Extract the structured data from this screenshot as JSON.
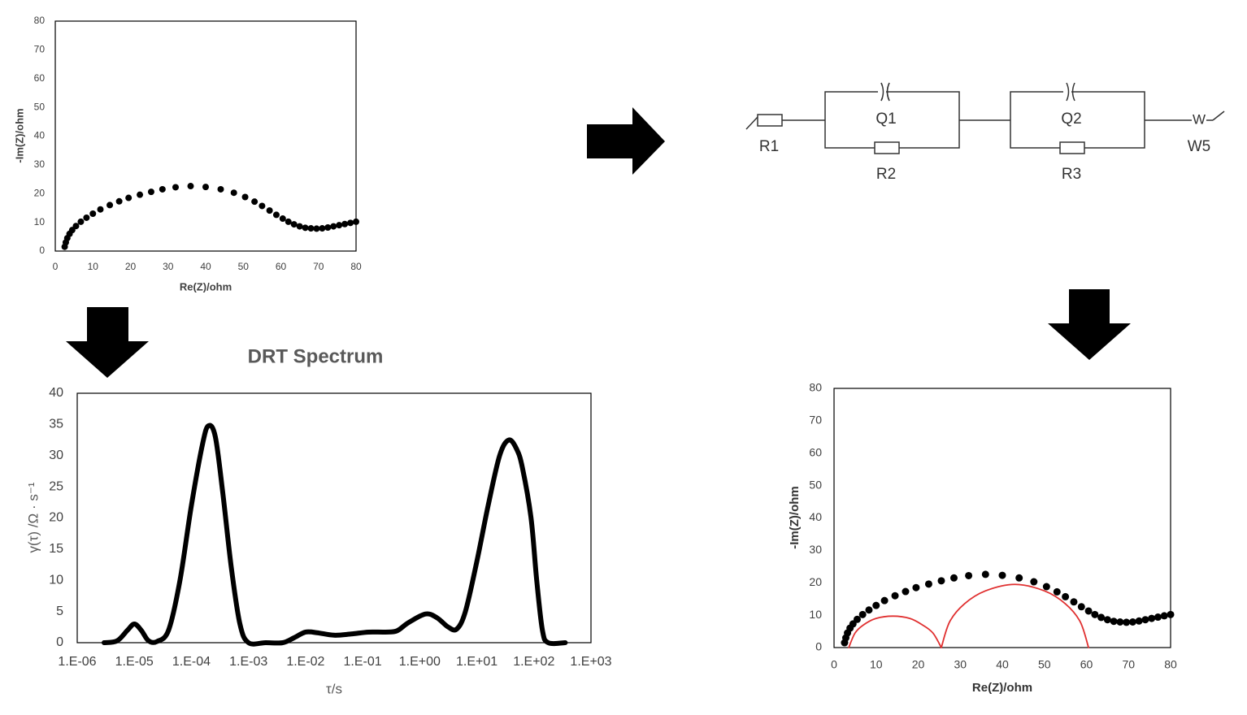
{
  "chart_data": [
    {
      "type": "scatter",
      "xlabel": "Re(Z)/ohm",
      "ylabel": "-Im(Z)/ohm",
      "xlim": [
        0,
        80
      ],
      "ylim": [
        0,
        80
      ],
      "xticks": [
        0,
        10,
        20,
        30,
        40,
        50,
        60,
        70,
        80
      ],
      "yticks": [
        0,
        10,
        20,
        30,
        40,
        50,
        60,
        70,
        80
      ],
      "grid": false,
      "series": [
        {
          "style": "markers",
          "color": "#000000",
          "x": [
            2.5,
            2.8,
            3.2,
            3.8,
            4.5,
            5.5,
            6.8,
            8.3,
            10,
            12,
            14.5,
            17,
            19.5,
            22.5,
            25.5,
            28.5,
            32,
            36,
            40,
            44,
            47.5,
            50.5,
            53,
            55,
            57,
            58.8,
            60.5,
            62,
            63.5,
            65,
            66.5,
            68,
            69.5,
            71,
            72.5,
            74,
            75.5,
            77,
            78.5,
            80
          ],
          "values": [
            1.5,
            3,
            4.5,
            6,
            7.3,
            8.7,
            10.2,
            11.6,
            13,
            14.5,
            16,
            17.3,
            18.5,
            19.6,
            20.6,
            21.5,
            22.2,
            22.6,
            22.3,
            21.5,
            20.3,
            18.8,
            17.2,
            15.7,
            14.1,
            12.6,
            11.3,
            10.2,
            9.3,
            8.6,
            8.1,
            7.9,
            7.8,
            7.9,
            8.2,
            8.6,
            9,
            9.4,
            9.8,
            10.2
          ]
        }
      ]
    },
    {
      "type": "line",
      "title": "DRT Spectrum",
      "xlabel": "τ/s",
      "ylabel": "γ(τ) /Ω · s⁻¹",
      "xscale": "log",
      "xlim": [
        1e-06,
        1000
      ],
      "ylim": [
        0,
        40
      ],
      "xticks": [
        {
          "value": 1e-06,
          "label": "1.E-06"
        },
        {
          "value": 1e-05,
          "label": "1.E-05"
        },
        {
          "value": 0.0001,
          "label": "1.E-04"
        },
        {
          "value": 0.001,
          "label": "1.E-03"
        },
        {
          "value": 0.01,
          "label": "1.E-02"
        },
        {
          "value": 0.1,
          "label": "1.E-01"
        },
        {
          "value": 1,
          "label": "1.E+00"
        },
        {
          "value": 10,
          "label": "1.E+01"
        },
        {
          "value": 100,
          "label": "1.E+02"
        },
        {
          "value": 1000,
          "label": "1.E+03"
        }
      ],
      "yticks": [
        0,
        5,
        10,
        15,
        20,
        25,
        30,
        35,
        40
      ],
      "grid": false,
      "series": [
        {
          "style": "line",
          "color": "#000000",
          "x": [
            2.95e-06,
            5e-06,
            7.6e-06,
            1e-05,
            1.32e-05,
            1.78e-05,
            2.51e-05,
            3.98e-05,
            6.31e-05,
            0.0001,
            0.000158,
            0.0002,
            0.000263,
            0.000355,
            0.000501,
            0.000708,
            0.001,
            0.002,
            0.00398,
            0.00631,
            0.01,
            0.0158,
            0.0316,
            0.0631,
            0.126,
            0.251,
            0.398,
            0.631,
            1.26,
            2.0,
            3.16,
            4.47,
            6.31,
            10,
            15.8,
            25.1,
            36.3,
            50.1,
            63.1,
            89.1,
            112,
            141,
            178,
            355
          ],
          "values": [
            0,
            0.3,
            2,
            3,
            2,
            0.3,
            0.2,
            2,
            10,
            22,
            32,
            34.8,
            33,
            24,
            12,
            3,
            0,
            0,
            0,
            0.8,
            1.7,
            1.6,
            1.2,
            1.4,
            1.7,
            1.7,
            1.9,
            3.2,
            4.6,
            4,
            2.5,
            2.2,
            5,
            13,
            22,
            30,
            32.5,
            31,
            28,
            20,
            10,
            2,
            0,
            0
          ]
        }
      ]
    },
    {
      "type": "scatter",
      "xlabel": "Re(Z)/ohm",
      "ylabel": "-Im(Z)/ohm",
      "xlim": [
        0,
        80
      ],
      "ylim": [
        0,
        80
      ],
      "xticks": [
        0,
        10,
        20,
        30,
        40,
        50,
        60,
        70,
        80
      ],
      "yticks": [
        0,
        10,
        20,
        30,
        40,
        50,
        60,
        70,
        80
      ],
      "grid": false,
      "series": [
        {
          "style": "markers",
          "color": "#000000",
          "x": [
            2.5,
            2.8,
            3.2,
            3.8,
            4.5,
            5.5,
            6.8,
            8.3,
            10,
            12,
            14.5,
            17,
            19.5,
            22.5,
            25.5,
            28.5,
            32,
            36,
            40,
            44,
            47.5,
            50.5,
            53,
            55,
            57,
            58.8,
            60.5,
            62,
            63.5,
            65,
            66.5,
            68,
            69.5,
            71,
            72.5,
            74,
            75.5,
            77,
            78.5,
            80
          ],
          "values": [
            1.5,
            3,
            4.5,
            6,
            7.3,
            8.7,
            10.2,
            11.6,
            13,
            14.5,
            16,
            17.3,
            18.5,
            19.6,
            20.6,
            21.5,
            22.2,
            22.6,
            22.3,
            21.5,
            20.3,
            18.8,
            17.2,
            15.7,
            14.1,
            12.6,
            11.3,
            10.2,
            9.3,
            8.6,
            8.1,
            7.9,
            7.8,
            7.9,
            8.2,
            8.6,
            9,
            9.4,
            9.8,
            10.2
          ]
        },
        {
          "style": "line",
          "color": "#e03030",
          "x": [
            3.5,
            5,
            7,
            10,
            14,
            18,
            21,
            23.5,
            25.5
          ],
          "values": [
            0,
            4.5,
            7,
            9,
            9.7,
            9,
            7,
            4.5,
            0
          ]
        },
        {
          "style": "line",
          "color": "#e03030",
          "x": [
            25.5,
            27.5,
            31,
            36,
            43,
            50,
            55,
            58.5,
            60.5
          ],
          "values": [
            0,
            8,
            13.5,
            17.5,
            19.5,
            17.5,
            13.5,
            8,
            0
          ]
        }
      ]
    }
  ],
  "circuit": {
    "labels": [
      "R1",
      "Q1",
      "R2",
      "Q2",
      "R3",
      "W5"
    ]
  }
}
